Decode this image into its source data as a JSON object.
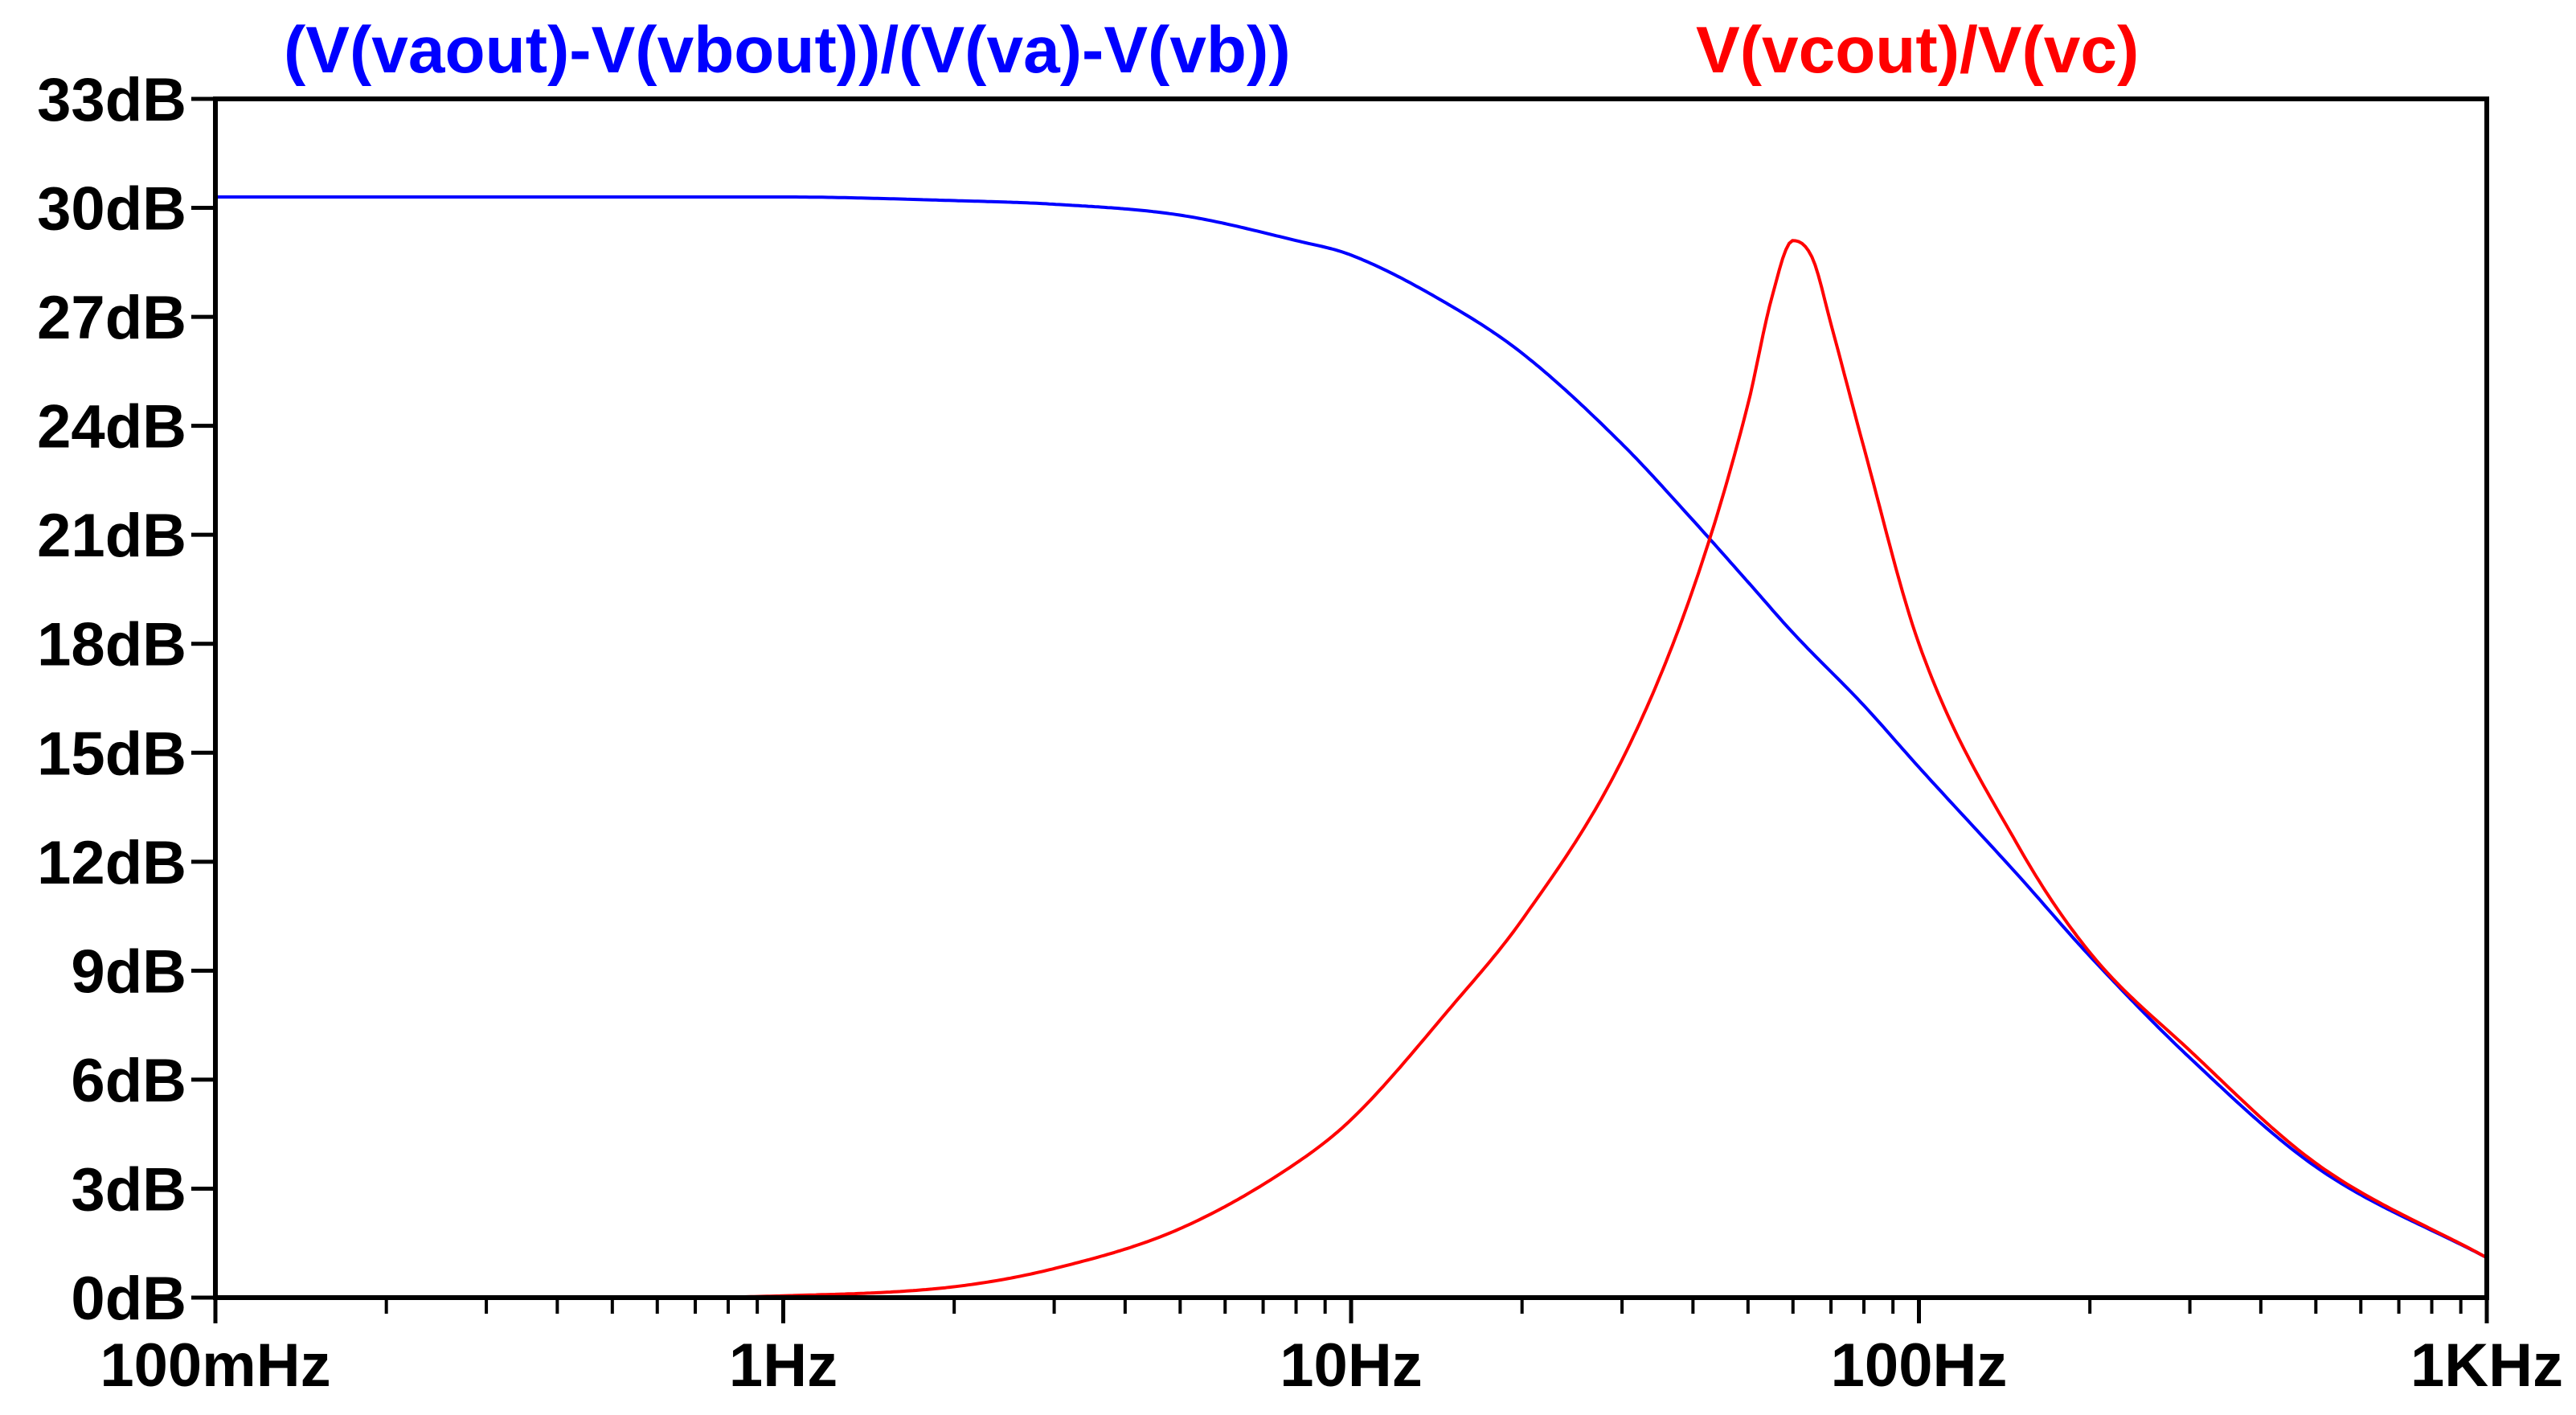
{
  "chart_data": {
    "type": "line",
    "title": "",
    "xlabel": "",
    "ylabel": "",
    "xscale": "log",
    "xlim": [
      0.1,
      1000
    ],
    "ylim": [
      0,
      33
    ],
    "grid": false,
    "legend_position": "top",
    "x_ticks": [
      {
        "value": 0.1,
        "label": "100mHz"
      },
      {
        "value": 1,
        "label": "1Hz"
      },
      {
        "value": 10,
        "label": "10Hz"
      },
      {
        "value": 100,
        "label": "100Hz"
      },
      {
        "value": 1000,
        "label": "1KHz"
      }
    ],
    "y_ticks": [
      {
        "value": 33,
        "label": "33dB"
      },
      {
        "value": 30,
        "label": "30dB"
      },
      {
        "value": 27,
        "label": "27dB"
      },
      {
        "value": 24,
        "label": "24dB"
      },
      {
        "value": 21,
        "label": "21dB"
      },
      {
        "value": 18,
        "label": "18dB"
      },
      {
        "value": 15,
        "label": "15dB"
      },
      {
        "value": 12,
        "label": "12dB"
      },
      {
        "value": 9,
        "label": "9dB"
      },
      {
        "value": 6,
        "label": "6dB"
      },
      {
        "value": 3,
        "label": "3dB"
      },
      {
        "value": 0,
        "label": "0dB"
      }
    ],
    "series": [
      {
        "name": "(V(vaout)-V(vbout))/(V(va)-V(vb))",
        "color": "#0000ff",
        "x": [
          0.1,
          0.3,
          1,
          2,
          3,
          5,
          8,
          10,
          15,
          20,
          30,
          40,
          50,
          60,
          80,
          100,
          150,
          200,
          300,
          500,
          1000
        ],
        "y": [
          30.3,
          30.3,
          30.3,
          30.2,
          30.1,
          29.8,
          29.1,
          28.7,
          27.3,
          26.0,
          23.5,
          21.4,
          19.7,
          18.3,
          16.3,
          14.6,
          11.6,
          9.4,
          6.6,
          3.6,
          1.1
        ]
      },
      {
        "name": "V(vcout)/V(vc)",
        "color": "#ff0000",
        "x": [
          0.1,
          0.5,
          1,
          2,
          3,
          5,
          8,
          10,
          15,
          20,
          30,
          40,
          50,
          55,
          60,
          65,
          70,
          80,
          100,
          150,
          200,
          300,
          500,
          1000
        ],
        "y": [
          0,
          0,
          0.05,
          0.3,
          0.8,
          1.9,
          3.7,
          4.9,
          8.0,
          10.4,
          14.8,
          19.5,
          24.6,
          27.5,
          29.1,
          28.6,
          26.8,
          23.4,
          18.0,
          12.4,
          9.5,
          6.8,
          3.7,
          1.1
        ]
      }
    ]
  }
}
